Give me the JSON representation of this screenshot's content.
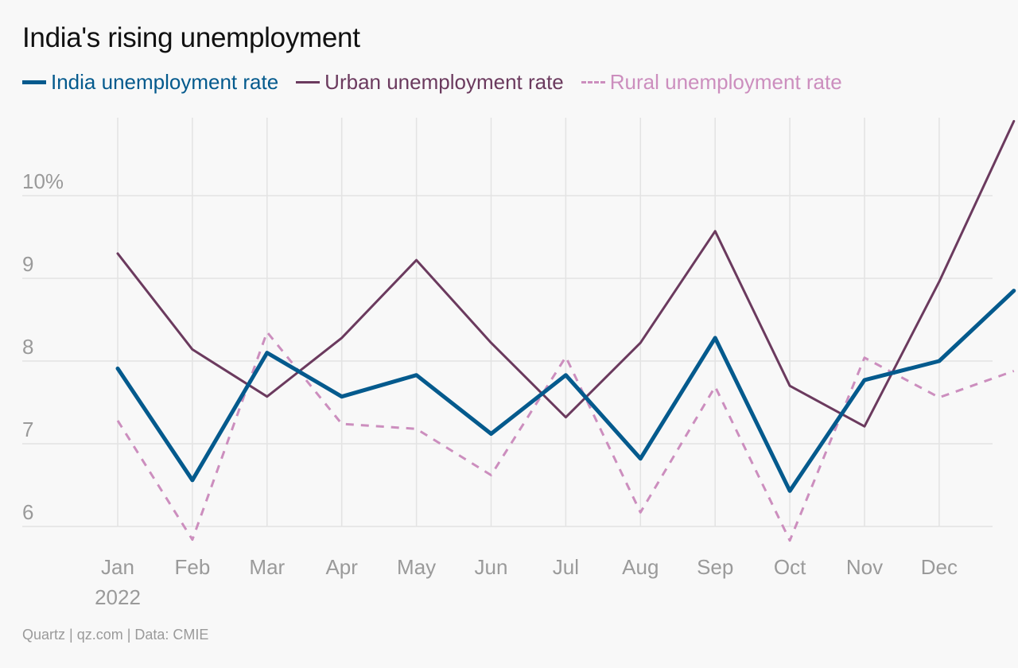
{
  "title": "India's rising unemployment",
  "source": "Quartz | qz.com | Data: CMIE",
  "colors": {
    "india": "#045a8d",
    "urban": "#6b3a5e",
    "rural": "#cc8ebe",
    "grid": "#e3e3e3",
    "tick": "#9a9a9a"
  },
  "legend": [
    {
      "label": "India unemployment rate",
      "color": "#045a8d",
      "style": "solid"
    },
    {
      "label": "Urban unemployment rate",
      "color": "#6b3a5e",
      "style": "solid"
    },
    {
      "label": "Rural unemployment rate",
      "color": "#cc8ebe",
      "style": "dashed"
    }
  ],
  "chart_data": {
    "type": "line",
    "title": "India's rising unemployment",
    "categories": [
      "Jan",
      "Feb",
      "Mar",
      "Apr",
      "May",
      "Jun",
      "Jul",
      "Aug",
      "Sep",
      "Oct",
      "Nov",
      "Dec",
      ""
    ],
    "x_tick_labels": [
      "Jan",
      "Feb",
      "Mar",
      "Apr",
      "May",
      "Jun",
      "Jul",
      "Aug",
      "Sep",
      "Oct",
      "Nov",
      "Dec"
    ],
    "x_sublabel": "2022",
    "y_ticks": [
      6,
      7,
      8,
      9,
      10
    ],
    "y_tick_labels": [
      "6",
      "7",
      "8",
      "9",
      "10%"
    ],
    "ylim": [
      5.85,
      10.95
    ],
    "grid": true,
    "legend_position": "top-left",
    "series": [
      {
        "name": "India unemployment rate",
        "color": "#045a8d",
        "style": "solid",
        "values": [
          7.91,
          6.56,
          8.1,
          7.57,
          7.83,
          7.12,
          7.83,
          6.82,
          8.28,
          6.43,
          7.77,
          8.0,
          8.85
        ]
      },
      {
        "name": "Urban unemployment rate",
        "color": "#6b3a5e",
        "style": "solid",
        "values": [
          9.3,
          8.14,
          7.57,
          8.28,
          9.22,
          8.22,
          7.32,
          8.22,
          9.57,
          7.7,
          7.21,
          8.96,
          10.9
        ]
      },
      {
        "name": "Rural unemployment rate",
        "color": "#cc8ebe",
        "style": "dashed",
        "values": [
          7.28,
          5.84,
          8.35,
          7.24,
          7.18,
          6.62,
          8.05,
          6.17,
          7.69,
          5.83,
          8.04,
          7.56,
          7.88
        ]
      }
    ]
  }
}
